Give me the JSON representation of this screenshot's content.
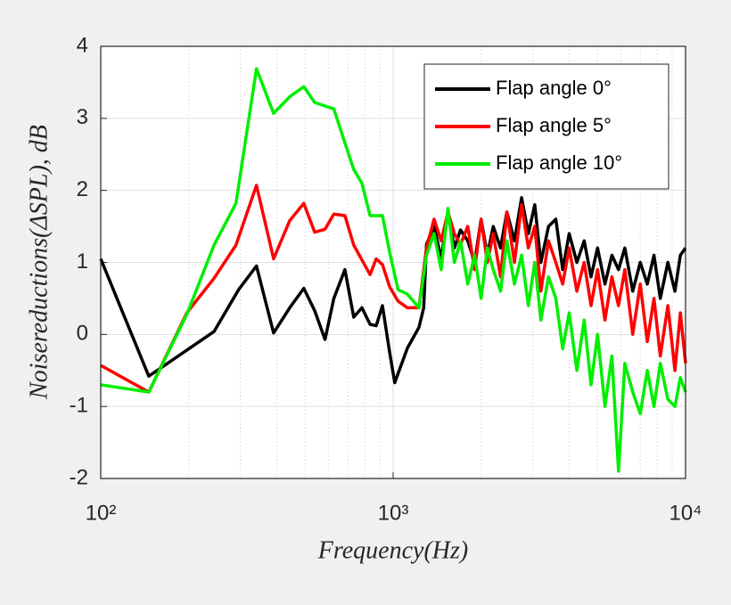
{
  "chart_data": {
    "type": "line",
    "x_label": "Frequency(Hz)",
    "y_label": "Noisereductions(ΔSPL), dB",
    "xscale": "log",
    "xlim": [
      100,
      10000
    ],
    "xticks": [
      {
        "value": 100,
        "label": "10²"
      },
      {
        "value": 1000,
        "label": "10³"
      },
      {
        "value": 10000,
        "label": "10⁴"
      }
    ],
    "xminorticks": [
      200,
      300,
      400,
      500,
      600,
      700,
      800,
      900,
      2000,
      3000,
      4000,
      5000,
      6000,
      7000,
      8000,
      9000
    ],
    "ylim": [
      -2,
      4
    ],
    "yticks": [
      -2,
      -1,
      0,
      1,
      2,
      3,
      4
    ],
    "grid": true,
    "legend": "upper right",
    "series": [
      {
        "name": "Flap angle 0°",
        "color": "#000000",
        "x": [
          100,
          146,
          244,
          296,
          341,
          390,
          443,
          495,
          539,
          585,
          627,
          684,
          733,
          782,
          834,
          875,
          919,
          973,
          1013,
          1119,
          1226,
          1272,
          1300,
          1380,
          1460,
          1540,
          1620,
          1700,
          1800,
          1900,
          2000,
          2100,
          2200,
          2330,
          2450,
          2600,
          2750,
          2900,
          3050,
          3200,
          3400,
          3600,
          3800,
          4000,
          4250,
          4500,
          4750,
          5000,
          5300,
          5600,
          5900,
          6200,
          6600,
          7000,
          7400,
          7800,
          8200,
          8700,
          9200,
          9600,
          10000
        ],
        "values": [
          1.05,
          -0.58,
          0.04,
          0.62,
          0.95,
          0.02,
          0.37,
          0.64,
          0.33,
          -0.07,
          0.5,
          0.9,
          0.24,
          0.37,
          0.14,
          0.12,
          0.4,
          -0.25,
          -0.67,
          -0.19,
          0.1,
          0.37,
          1.25,
          1.5,
          1.05,
          1.7,
          1.2,
          1.45,
          1.3,
          1.0,
          1.6,
          1.1,
          1.5,
          1.2,
          1.7,
          1.3,
          1.9,
          1.4,
          1.8,
          1.0,
          1.5,
          1.6,
          0.9,
          1.4,
          1.0,
          1.3,
          0.8,
          1.2,
          0.7,
          1.1,
          0.9,
          1.2,
          0.6,
          1.0,
          0.7,
          1.1,
          0.5,
          1.0,
          0.6,
          1.1,
          1.2
        ]
      },
      {
        "name": "Flap angle 5°",
        "color": "#ff0000",
        "x": [
          100,
          146,
          197,
          244,
          290,
          341,
          390,
          443,
          495,
          539,
          585,
          627,
          684,
          733,
          834,
          875,
          919,
          973,
          1040,
          1119,
          1226,
          1300,
          1380,
          1460,
          1540,
          1620,
          1700,
          1800,
          1900,
          2000,
          2100,
          2200,
          2330,
          2450,
          2600,
          2750,
          2900,
          3050,
          3200,
          3400,
          3600,
          3800,
          4000,
          4250,
          4500,
          4750,
          5000,
          5300,
          5600,
          5900,
          6200,
          6600,
          7000,
          7400,
          7800,
          8200,
          8700,
          9200,
          9600,
          10000
        ],
        "values": [
          -0.43,
          -0.8,
          0.3,
          0.78,
          1.24,
          2.07,
          1.05,
          1.58,
          1.82,
          1.42,
          1.46,
          1.67,
          1.65,
          1.24,
          0.83,
          1.05,
          0.97,
          0.66,
          0.46,
          0.37,
          0.37,
          1.2,
          1.6,
          1.3,
          1.7,
          1.4,
          1.25,
          1.5,
          0.9,
          1.6,
          1.0,
          1.4,
          0.8,
          1.7,
          1.0,
          1.8,
          1.2,
          1.5,
          0.6,
          1.3,
          1.0,
          0.7,
          1.2,
          0.6,
          1.0,
          0.4,
          0.9,
          0.2,
          0.8,
          0.4,
          0.9,
          0.0,
          0.7,
          -0.1,
          0.5,
          -0.3,
          0.4,
          -0.5,
          0.3,
          -0.4
        ]
      },
      {
        "name": "Flap angle 10°",
        "color": "#00ee00",
        "x": [
          100,
          146,
          197,
          244,
          290,
          341,
          390,
          443,
          495,
          539,
          627,
          684,
          733,
          782,
          834,
          919,
          973,
          1040,
          1119,
          1226,
          1300,
          1380,
          1460,
          1540,
          1620,
          1700,
          1800,
          1900,
          2000,
          2100,
          2200,
          2330,
          2450,
          2600,
          2750,
          2900,
          3050,
          3200,
          3400,
          3600,
          3800,
          4000,
          4250,
          4500,
          4750,
          5000,
          5300,
          5600,
          5900,
          6200,
          6600,
          7000,
          7400,
          7800,
          8200,
          8700,
          9200,
          9600,
          10000
        ],
        "values": [
          -0.7,
          -0.8,
          0.28,
          1.24,
          1.82,
          3.69,
          3.07,
          3.3,
          3.44,
          3.22,
          3.13,
          2.66,
          2.29,
          2.1,
          1.65,
          1.65,
          1.14,
          0.62,
          0.56,
          0.37,
          1.1,
          1.4,
          0.9,
          1.75,
          1.0,
          1.3,
          0.7,
          1.1,
          0.5,
          1.2,
          0.9,
          0.6,
          1.3,
          0.7,
          1.1,
          0.4,
          1.0,
          0.2,
          0.8,
          0.5,
          -0.2,
          0.3,
          -0.5,
          0.2,
          -0.7,
          0.0,
          -1.0,
          -0.3,
          -1.9,
          -0.4,
          -0.8,
          -1.1,
          -0.5,
          -1.0,
          -0.4,
          -0.9,
          -1.0,
          -0.6,
          -0.8
        ]
      }
    ]
  }
}
